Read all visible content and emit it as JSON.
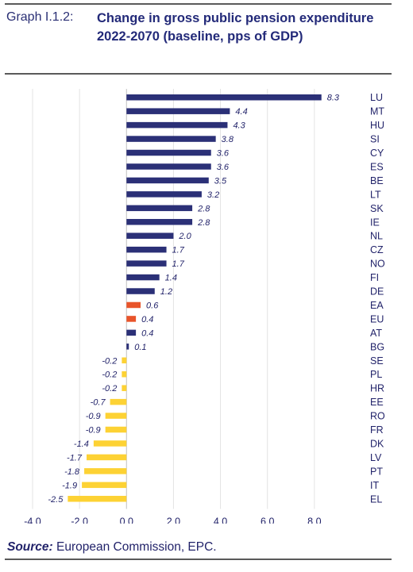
{
  "header": {
    "graph_label": "Graph I.1.2:",
    "title": "Change in gross public pension expenditure 2022-2070 (baseline, pps of GDP)"
  },
  "footer": {
    "source_label": "Source:",
    "source_text": " European Commission, EPC."
  },
  "colors": {
    "member_state": "#2b3077",
    "aggregate": "#e8542a",
    "decrease": "#fdd234",
    "text": "#22236a"
  },
  "chart_data": {
    "type": "bar",
    "orientation": "horizontal",
    "title": "Change in gross public pension expenditure 2022-2070 (baseline, pps of GDP)",
    "categories": [
      "LU",
      "MT",
      "HU",
      "SI",
      "CY",
      "ES",
      "BE",
      "LT",
      "SK",
      "IE",
      "NL",
      "CZ",
      "NO",
      "FI",
      "DE",
      "EA",
      "EU",
      "AT",
      "BG",
      "SE",
      "PL",
      "HR",
      "EE",
      "RO",
      "FR",
      "DK",
      "LV",
      "PT",
      "IT",
      "EL"
    ],
    "values": [
      8.3,
      4.4,
      4.3,
      3.8,
      3.6,
      3.6,
      3.5,
      3.2,
      2.8,
      2.8,
      2.0,
      1.7,
      1.7,
      1.4,
      1.2,
      0.6,
      0.4,
      0.4,
      0.1,
      -0.2,
      -0.2,
      -0.2,
      -0.7,
      -0.9,
      -0.9,
      -1.4,
      -1.7,
      -1.8,
      -1.9,
      -2.5
    ],
    "value_labels": [
      "8.3",
      "4.4",
      "4.3",
      "3.8",
      "3.6",
      "3.6",
      "3.5",
      "3.2",
      "2.8",
      "2.8",
      "2.0",
      "1.7",
      "1.7",
      "1.4",
      "1.2",
      "0.6",
      "0.4",
      "0.4",
      "0.1",
      "-0.2",
      "-0.2",
      "-0.2",
      "-0.7",
      "-0.9",
      "-0.9",
      "-1.4",
      "-1.7",
      "-1.8",
      "-1.9",
      "-2.5"
    ],
    "bar_groups": [
      "ms",
      "ms",
      "ms",
      "ms",
      "ms",
      "ms",
      "ms",
      "ms",
      "ms",
      "ms",
      "ms",
      "ms",
      "ms",
      "ms",
      "ms",
      "agg",
      "agg",
      "ms",
      "ms",
      "neg",
      "neg",
      "neg",
      "neg",
      "neg",
      "neg",
      "neg",
      "neg",
      "neg",
      "neg",
      "neg"
    ],
    "xlim": [
      -4.0,
      10.0
    ],
    "x_ticks": [
      -4.0,
      -2.0,
      0.0,
      2.0,
      4.0,
      6.0,
      8.0
    ],
    "x_tick_labels": [
      "-4.0",
      "-2.0",
      "0.0",
      "2.0",
      "4.0",
      "6.0",
      "8.0"
    ],
    "grid": true,
    "legend": "none"
  }
}
